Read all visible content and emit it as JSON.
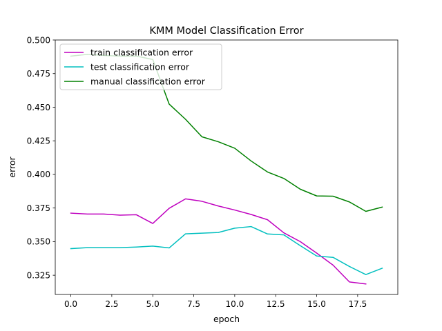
{
  "chart_data": {
    "type": "line",
    "title": "KMM Model Classification Error",
    "xlabel": "epoch",
    "ylabel": "error",
    "xlim": [
      -0.95,
      19.95
    ],
    "ylim": [
      0.3107,
      0.5
    ],
    "xticks": [
      0.0,
      2.5,
      5.0,
      7.5,
      10.0,
      12.5,
      15.0,
      17.5
    ],
    "xtick_labels": [
      "0.0",
      "2.5",
      "5.0",
      "7.5",
      "10.0",
      "12.5",
      "15.0",
      "17.5"
    ],
    "yticks": [
      0.325,
      0.35,
      0.375,
      0.4,
      0.425,
      0.45,
      0.475,
      0.5
    ],
    "ytick_labels": [
      "0.325",
      "0.350",
      "0.375",
      "0.400",
      "0.425",
      "0.450",
      "0.475",
      "0.500"
    ],
    "grid": false,
    "legend_position": "top-left",
    "series": [
      {
        "name": "train classification error",
        "color": "#bf00bf",
        "x": [
          0,
          1,
          2,
          3,
          4,
          5,
          6,
          7,
          8,
          9,
          10,
          11,
          12,
          13,
          14,
          15,
          16,
          17,
          18
        ],
        "y": [
          0.3712,
          0.3705,
          0.3705,
          0.3697,
          0.37,
          0.3635,
          0.3748,
          0.3818,
          0.38,
          0.3765,
          0.3735,
          0.3702,
          0.3663,
          0.3565,
          0.35,
          0.3415,
          0.3325,
          0.32,
          0.3185
        ]
      },
      {
        "name": "test classification error",
        "color": "#00bfbf",
        "x": [
          0,
          1,
          2,
          3,
          4,
          5,
          6,
          7,
          8,
          9,
          10,
          11,
          12,
          13,
          14,
          15,
          16,
          17,
          18,
          19
        ],
        "y": [
          0.3448,
          0.3455,
          0.3455,
          0.3455,
          0.346,
          0.3467,
          0.3453,
          0.3558,
          0.3563,
          0.3568,
          0.36,
          0.3612,
          0.3557,
          0.355,
          0.347,
          0.3393,
          0.3383,
          0.3315,
          0.3255,
          0.3302
        ]
      },
      {
        "name": "manual classification error",
        "color": "#008000",
        "x": [
          0,
          1,
          2,
          3,
          4,
          5,
          6,
          7,
          8,
          9,
          10,
          11,
          12,
          13,
          14,
          15,
          16,
          17,
          18,
          19
        ],
        "y": [
          0.488,
          0.4893,
          0.4885,
          0.488,
          0.488,
          0.4855,
          0.4523,
          0.441,
          0.428,
          0.4243,
          0.4195,
          0.41,
          0.4018,
          0.397,
          0.389,
          0.384,
          0.3838,
          0.3795,
          0.3725,
          0.3757
        ]
      }
    ]
  }
}
